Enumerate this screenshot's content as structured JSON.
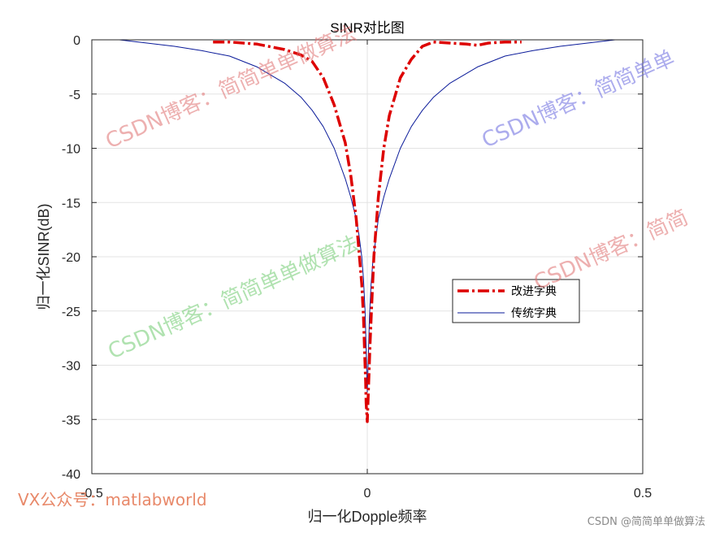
{
  "chart_data": {
    "type": "line",
    "title": "SINR对比图",
    "xlabel": "归一化Dopple频率",
    "ylabel": "归一化SINR(dB)",
    "xlim": [
      -0.5,
      0.5
    ],
    "ylim": [
      -40,
      0
    ],
    "xticks": [
      -0.5,
      0,
      0.5
    ],
    "yticks": [
      0,
      -5,
      -10,
      -15,
      -20,
      -25,
      -30,
      -35,
      -40
    ],
    "xtick_labels": [
      "-0.5",
      "0",
      "0.5"
    ],
    "ytick_labels": [
      "0",
      "-5",
      "-10",
      "-15",
      "-20",
      "-25",
      "-30",
      "-35",
      "-40"
    ],
    "grid": true,
    "legend_position": "center-right",
    "series": [
      {
        "name": "改进字典",
        "color": "#dd0000",
        "style": "dashdot",
        "x": [
          -0.28,
          -0.25,
          -0.2,
          -0.15,
          -0.12,
          -0.1,
          -0.08,
          -0.06,
          -0.04,
          -0.03,
          -0.02,
          -0.015,
          -0.01,
          -0.007,
          -0.005,
          -0.003,
          -0.002,
          0.0,
          0.003,
          0.005,
          0.008,
          0.012,
          0.02,
          0.03,
          0.04,
          0.06,
          0.08,
          0.1,
          0.12,
          0.15,
          0.18,
          0.2,
          0.22,
          0.25,
          0.28
        ],
        "values": [
          -0.2,
          -0.2,
          -0.4,
          -0.9,
          -1.4,
          -2.0,
          -3.5,
          -6.0,
          -9.5,
          -12.5,
          -16.5,
          -19.5,
          -22.5,
          -25.5,
          -28.5,
          -31.5,
          -33.5,
          -35.2,
          -31.0,
          -28.0,
          -24.5,
          -20.0,
          -14.5,
          -10.0,
          -7.0,
          -3.5,
          -1.8,
          -0.6,
          -0.2,
          -0.3,
          -0.4,
          -0.5,
          -0.3,
          -0.2,
          -0.2
        ]
      },
      {
        "name": "传统字典",
        "color": "#0a1a99",
        "style": "solid",
        "x": [
          -0.5,
          -0.45,
          -0.4,
          -0.35,
          -0.3,
          -0.25,
          -0.2,
          -0.15,
          -0.12,
          -0.1,
          -0.08,
          -0.06,
          -0.04,
          -0.03,
          -0.02,
          -0.015,
          -0.01,
          -0.007,
          -0.004,
          -0.002,
          0.0,
          0.002,
          0.004,
          0.007,
          0.01,
          0.015,
          0.02,
          0.03,
          0.04,
          0.06,
          0.08,
          0.1,
          0.12,
          0.15,
          0.2,
          0.25,
          0.3,
          0.35,
          0.4,
          0.45,
          0.5
        ],
        "values": [
          0,
          0,
          -0.3,
          -0.6,
          -1.0,
          -1.5,
          -2.5,
          -4.0,
          -5.3,
          -6.5,
          -8.0,
          -10.0,
          -12.8,
          -14.5,
          -16.5,
          -18.0,
          -20.0,
          -22.0,
          -25.0,
          -28.5,
          -32.5,
          -29.0,
          -25.5,
          -22.5,
          -20.5,
          -18.5,
          -16.5,
          -14.5,
          -12.8,
          -10.0,
          -8.0,
          -6.5,
          -5.3,
          -4.0,
          -2.5,
          -1.5,
          -1.0,
          -0.6,
          -0.3,
          0,
          0
        ]
      }
    ]
  },
  "watermarks": [
    {
      "text": "CSDN博客：简简单单做算法",
      "color": "#e07070"
    },
    {
      "text": "CSDN博客：简简单单",
      "color": "#6a6ae0"
    },
    {
      "text": "CSDN博客：简简单单做算法",
      "color": "#70cc70"
    },
    {
      "text": "CSDN博客：简简",
      "color": "#e07070"
    }
  ],
  "footer_left": "VX公众号：matlabworld",
  "footer_right": "CSDN @简简单单做算法"
}
